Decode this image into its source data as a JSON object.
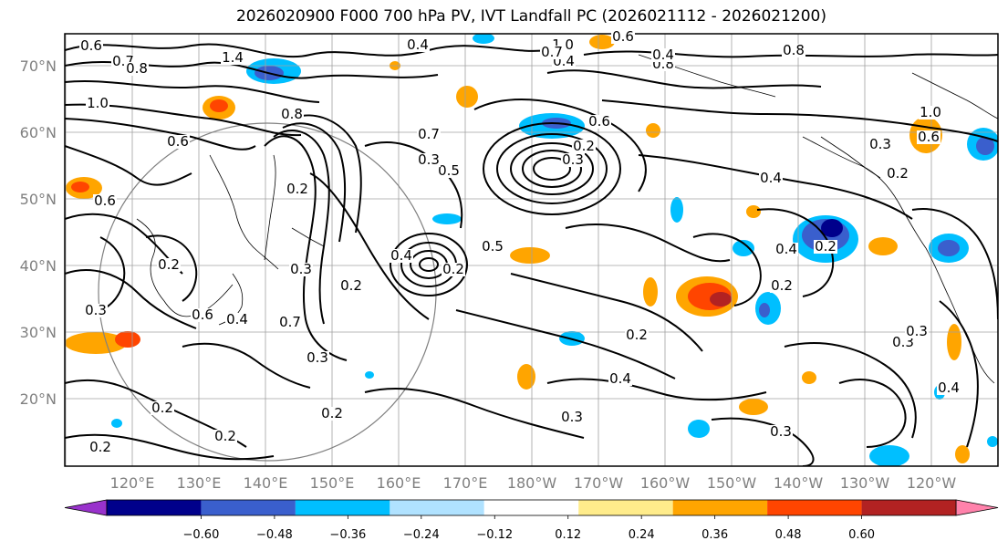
{
  "title": "2026020900 F000 700 hPa PV, IVT Landfall PC (2026021112 - 2026021200)",
  "lat_labels": [
    "70°N",
    "60°N",
    "50°N",
    "40°N",
    "30°N",
    "20°N"
  ],
  "lon_labels": [
    "120°E",
    "130°E",
    "140°E",
    "150°E",
    "160°E",
    "170°E",
    "180°W",
    "170°W",
    "160°W",
    "150°W",
    "140°W",
    "130°W",
    "120°W"
  ],
  "colorbar": {
    "colors": [
      "#9932cc",
      "#00008b",
      "#3a5fcd",
      "#00bfff",
      "#b0e2ff",
      "#ffffff",
      "#ffec8b",
      "#ffa500",
      "#ff4500",
      "#b22222",
      "#ff82ab"
    ],
    "tick_labels": [
      "−0.60",
      "−0.48",
      "−0.36",
      "−0.24",
      "−0.12",
      "0.12",
      "0.24",
      "0.36",
      "0.48",
      "0.60"
    ]
  },
  "contour_labels": [
    "0.6",
    "0.7",
    "0.8",
    "1.4",
    "0.4",
    "1.0",
    "0.6",
    "0.4",
    "0.8",
    "0.7",
    "1.0",
    "0.8",
    "0.6",
    "0.5",
    "0.7",
    "0.2",
    "0.3",
    "0.4",
    "0.2",
    "0.5",
    "0.6",
    "0.2",
    "0.6",
    "0.3",
    "0.2",
    "0.4",
    "0.7",
    "0.3",
    "0.2",
    "0.2",
    "0.2",
    "0.6",
    "0.3",
    "0.2",
    "0.4",
    "0.2",
    "0.3",
    "0.3",
    "0.3",
    "0.2",
    "0.4",
    "0.2",
    "0.4",
    "0.3",
    "0.2",
    "0.3",
    "0.4",
    "0.6",
    "0.8",
    "1.0",
    "0.4",
    "0.2",
    "0.3"
  ]
}
